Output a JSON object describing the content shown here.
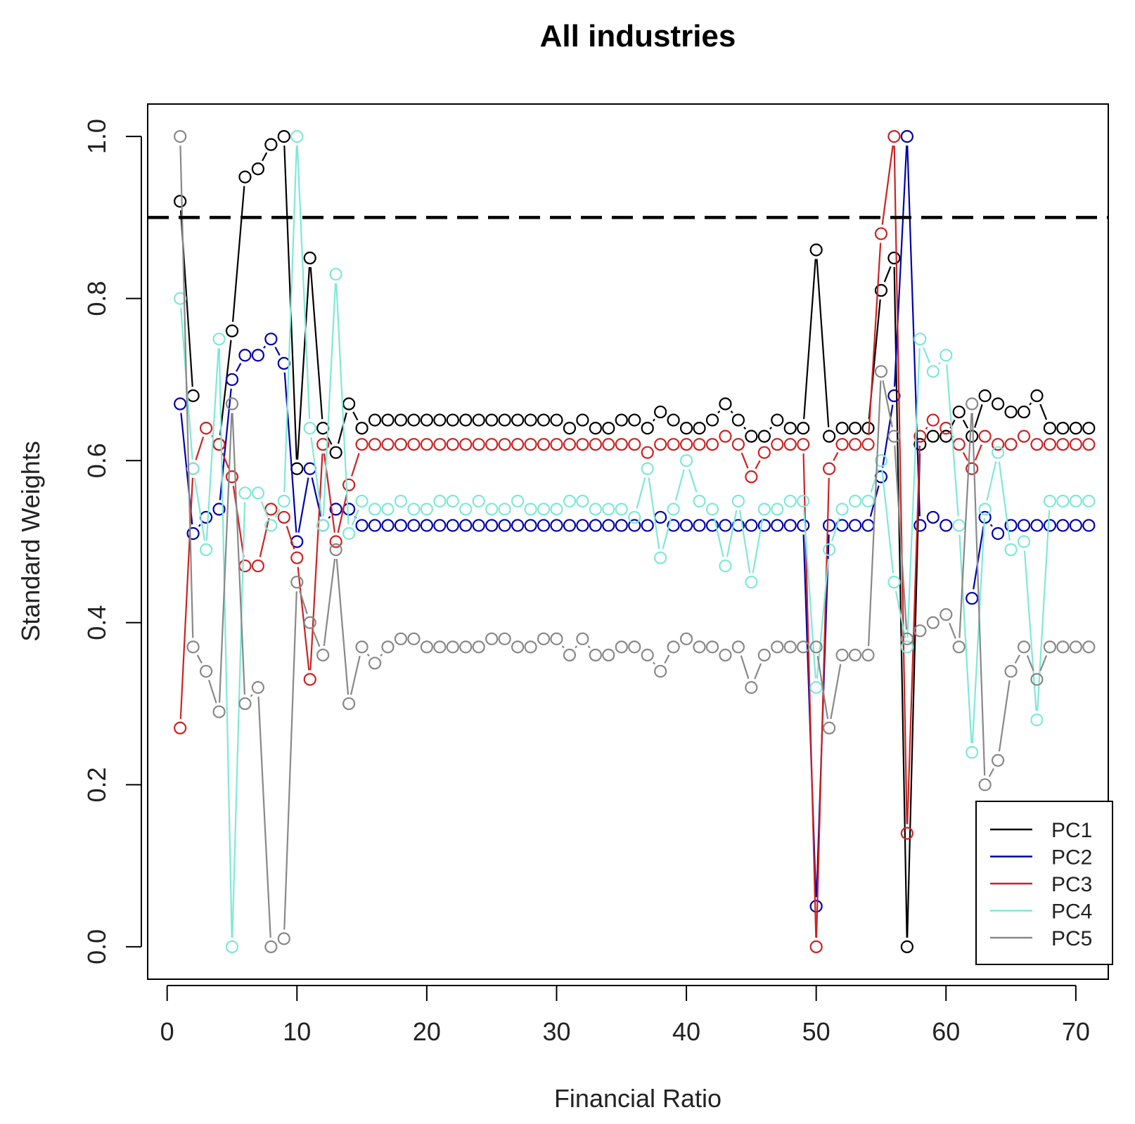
{
  "chart_data": {
    "type": "line",
    "title": "All industries",
    "xlabel": "Financial Ratio",
    "ylabel": "Standard Weights",
    "xlim": [
      -1.5,
      72.5
    ],
    "ylim": [
      -0.04,
      1.04
    ],
    "x_ticks": [
      0,
      10,
      20,
      30,
      40,
      50,
      60,
      70
    ],
    "y_ticks": [
      0.0,
      0.2,
      0.4,
      0.6,
      0.8,
      1.0
    ],
    "x_tick_labels": [
      "0",
      "10",
      "20",
      "30",
      "40",
      "50",
      "60",
      "70"
    ],
    "y_tick_labels": [
      "0.0",
      "0.2",
      "0.4",
      "0.6",
      "0.8",
      "1.0"
    ],
    "threshold": 0.9,
    "legend_position": "bottom-right",
    "x": [
      1,
      2,
      3,
      4,
      5,
      6,
      7,
      8,
      9,
      10,
      11,
      12,
      13,
      14,
      15,
      16,
      17,
      18,
      19,
      20,
      21,
      22,
      23,
      24,
      25,
      26,
      27,
      28,
      29,
      30,
      31,
      32,
      33,
      34,
      35,
      36,
      37,
      38,
      39,
      40,
      41,
      42,
      43,
      44,
      45,
      46,
      47,
      48,
      49,
      50,
      51,
      52,
      53,
      54,
      55,
      56,
      57,
      58,
      59,
      60,
      61,
      62,
      63,
      64,
      65,
      66,
      67,
      68,
      69,
      70,
      71
    ],
    "series": [
      {
        "name": "PC1",
        "color": "#000000",
        "values": [
          0.92,
          0.68,
          null,
          0.62,
          0.76,
          0.95,
          0.96,
          0.99,
          1.0,
          0.59,
          0.85,
          0.64,
          0.61,
          0.67,
          0.64,
          0.65,
          0.65,
          0.65,
          0.65,
          0.65,
          0.65,
          0.65,
          0.65,
          0.65,
          0.65,
          0.65,
          0.65,
          0.65,
          0.65,
          0.65,
          0.64,
          0.65,
          0.64,
          0.64,
          0.65,
          0.65,
          0.64,
          0.66,
          0.65,
          0.64,
          0.64,
          0.65,
          0.67,
          0.65,
          0.63,
          0.63,
          0.65,
          0.64,
          0.64,
          0.86,
          0.63,
          0.64,
          0.64,
          0.64,
          0.81,
          0.85,
          0.0,
          0.62,
          0.63,
          0.63,
          0.66,
          0.63,
          0.68,
          0.67,
          0.66,
          0.66,
          0.68,
          0.64,
          0.64,
          0.64,
          0.64
        ]
      },
      {
        "name": "PC2",
        "color": "#0000aa",
        "values": [
          0.67,
          0.51,
          0.53,
          0.54,
          0.7,
          0.73,
          0.73,
          0.75,
          0.72,
          0.5,
          0.59,
          0.52,
          0.54,
          0.54,
          0.52,
          0.52,
          0.52,
          0.52,
          0.52,
          0.52,
          0.52,
          0.52,
          0.52,
          0.52,
          0.52,
          0.52,
          0.52,
          0.52,
          0.52,
          0.52,
          0.52,
          0.52,
          0.52,
          0.52,
          0.52,
          0.52,
          0.52,
          0.53,
          0.52,
          0.52,
          0.52,
          0.52,
          0.52,
          0.52,
          0.52,
          0.52,
          0.52,
          0.52,
          0.52,
          0.05,
          0.52,
          0.52,
          0.52,
          0.52,
          0.58,
          0.68,
          1.0,
          0.52,
          0.53,
          0.52,
          null,
          0.43,
          0.53,
          0.51,
          0.52,
          0.52,
          0.52,
          0.52,
          0.52,
          0.52,
          0.52
        ]
      },
      {
        "name": "PC3",
        "color": "#cc2222",
        "values": [
          0.27,
          0.59,
          0.64,
          0.62,
          0.58,
          0.47,
          0.47,
          0.54,
          0.53,
          0.48,
          0.33,
          0.62,
          0.5,
          0.57,
          0.62,
          0.62,
          0.62,
          0.62,
          0.62,
          0.62,
          0.62,
          0.62,
          0.62,
          0.62,
          0.62,
          0.62,
          0.62,
          0.62,
          0.62,
          0.62,
          0.62,
          0.62,
          0.62,
          0.62,
          0.62,
          0.62,
          0.61,
          0.62,
          0.62,
          0.62,
          0.62,
          0.62,
          0.63,
          0.62,
          0.58,
          0.61,
          0.62,
          0.62,
          0.62,
          0.0,
          0.59,
          0.62,
          0.62,
          0.62,
          0.88,
          1.0,
          0.14,
          0.63,
          0.65,
          0.64,
          0.62,
          0.59,
          0.63,
          0.62,
          0.62,
          0.63,
          0.62,
          0.62,
          0.62,
          0.62,
          0.62
        ]
      },
      {
        "name": "PC4",
        "color": "#7fe8d8",
        "values": [
          0.8,
          0.59,
          0.49,
          0.75,
          0.0,
          0.56,
          0.56,
          0.52,
          0.55,
          1.0,
          0.64,
          0.52,
          0.83,
          0.51,
          0.55,
          0.54,
          0.54,
          0.55,
          0.54,
          0.54,
          0.55,
          0.55,
          0.54,
          0.55,
          0.54,
          0.54,
          0.55,
          0.54,
          0.54,
          0.54,
          0.55,
          0.55,
          0.54,
          0.54,
          0.54,
          0.53,
          0.59,
          0.48,
          0.54,
          0.6,
          0.55,
          0.54,
          0.47,
          0.55,
          0.45,
          0.54,
          0.54,
          0.55,
          0.55,
          0.32,
          0.49,
          0.54,
          0.55,
          0.55,
          0.6,
          0.45,
          0.37,
          0.75,
          0.71,
          0.73,
          0.52,
          0.24,
          0.54,
          0.61,
          0.49,
          0.5,
          0.28,
          0.55,
          0.55,
          0.55,
          0.55
        ]
      },
      {
        "name": "PC5",
        "color": "#888888",
        "values": [
          1.0,
          0.37,
          0.34,
          0.29,
          0.67,
          0.3,
          0.32,
          0.0,
          0.01,
          0.45,
          0.4,
          0.36,
          0.49,
          0.3,
          0.37,
          0.35,
          0.37,
          0.38,
          0.38,
          0.37,
          0.37,
          0.37,
          0.37,
          0.37,
          0.38,
          0.38,
          0.37,
          0.37,
          0.38,
          0.38,
          0.36,
          0.38,
          0.36,
          0.36,
          0.37,
          0.37,
          0.36,
          0.34,
          0.37,
          0.38,
          0.37,
          0.37,
          0.36,
          0.37,
          0.32,
          0.36,
          0.37,
          0.37,
          0.37,
          0.37,
          0.27,
          0.36,
          0.36,
          0.36,
          0.71,
          0.63,
          0.38,
          0.39,
          0.4,
          0.41,
          0.37,
          0.67,
          0.2,
          0.23,
          0.34,
          0.37,
          0.33,
          0.37,
          0.37,
          0.37,
          0.37
        ]
      }
    ]
  }
}
